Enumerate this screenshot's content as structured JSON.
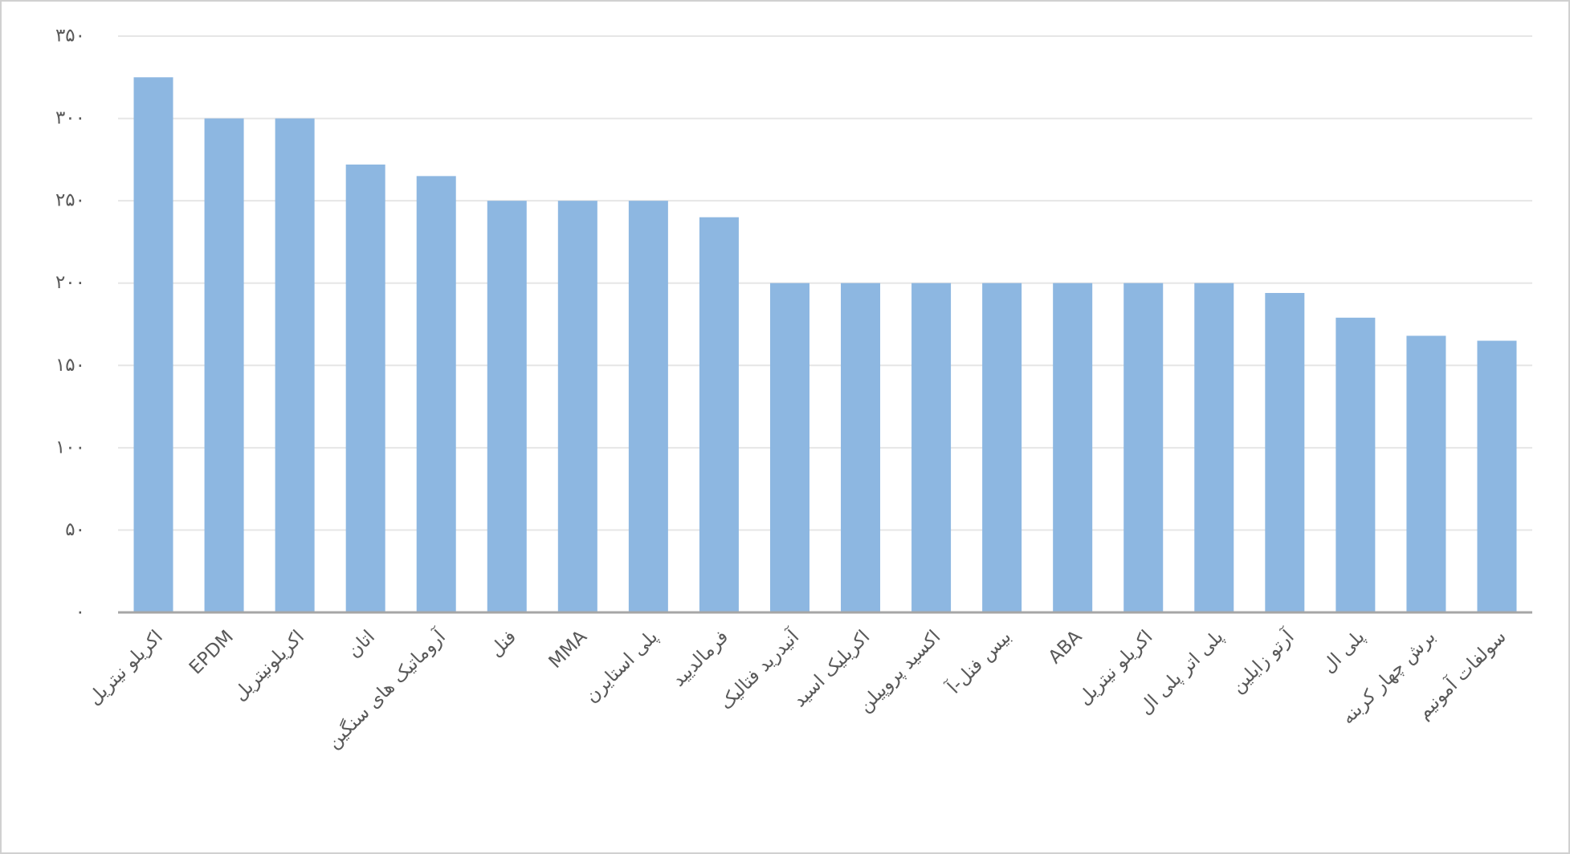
{
  "chart_data": {
    "type": "bar",
    "categories": [
      "اکریلو نیتریل",
      "EPDM",
      "اکریلونیتریل",
      "اتان",
      "آروماتیک های سنگین",
      "فنل",
      "MMA",
      "پلی استایرن",
      "فرمالدیید",
      "آنیدرید فتالیک",
      "اکریلیک اسید",
      "اکسید پروپیلن",
      "بیس فنل-آ",
      "ABA",
      "اکریلو نیتریل",
      "پلی اتر پلی ال",
      "آرتو زایلین",
      "پلی ال",
      "برش چهار کربنه",
      "سولفات آمونیم"
    ],
    "values": [
      325,
      300,
      300,
      272,
      265,
      250,
      250,
      250,
      240,
      200,
      200,
      200,
      200,
      200,
      200,
      200,
      194,
      179,
      168,
      165
    ],
    "color": "#8db7e1",
    "ylim": [
      0,
      350
    ],
    "yticks": [
      {
        "value": 0,
        "label": "۰"
      },
      {
        "value": 50,
        "label": "۵۰"
      },
      {
        "value": 100,
        "label": "۱۰۰"
      },
      {
        "value": 150,
        "label": "۱۵۰"
      },
      {
        "value": 200,
        "label": "۲۰۰"
      },
      {
        "value": 250,
        "label": "۲۵۰"
      },
      {
        "value": 300,
        "label": "۳۰۰"
      },
      {
        "value": 350,
        "label": "۳۵۰"
      }
    ],
    "grid": true
  }
}
